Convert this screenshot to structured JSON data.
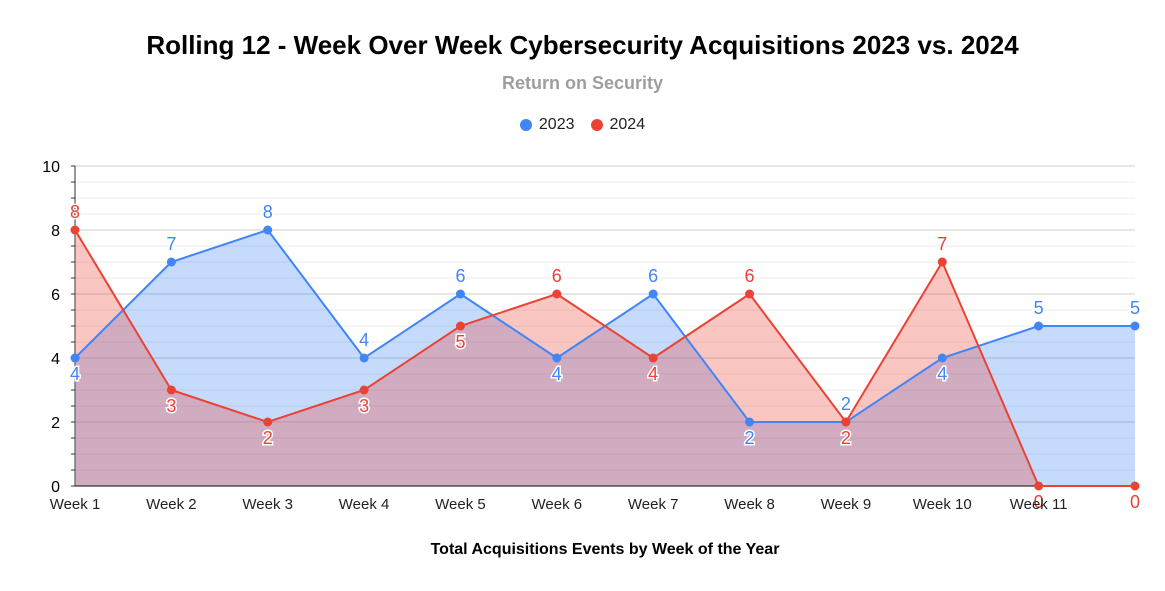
{
  "chart_data": {
    "type": "area",
    "title": "Rolling 12 - Week Over Week Cybersecurity Acquisitions 2023 vs. 2024",
    "subtitle": "Return on Security",
    "xlabel": "Total Acquisitions Events by Week of the Year",
    "ylabel": "",
    "ylim": [
      0,
      10
    ],
    "yticks": [
      0,
      2,
      4,
      6,
      8,
      10
    ],
    "categories": [
      "Week 1",
      "Week 2",
      "Week 3",
      "Week 4",
      "Week 5",
      "Week 6",
      "Week 7",
      "Week 8",
      "Week 9",
      "Week 10",
      "Week 11",
      ""
    ],
    "series": [
      {
        "name": "2023",
        "color": "#4285f4",
        "fill": "rgba(66,133,244,0.30)",
        "values": [
          4,
          7,
          8,
          4,
          6,
          4,
          6,
          2,
          2,
          4,
          5,
          5
        ]
      },
      {
        "name": "2024",
        "color": "#ea4335",
        "fill": "rgba(234,67,53,0.30)",
        "values": [
          8,
          3,
          2,
          3,
          5,
          6,
          4,
          6,
          2,
          7,
          0,
          0
        ]
      }
    ],
    "grid": true,
    "legend_position": "top"
  }
}
